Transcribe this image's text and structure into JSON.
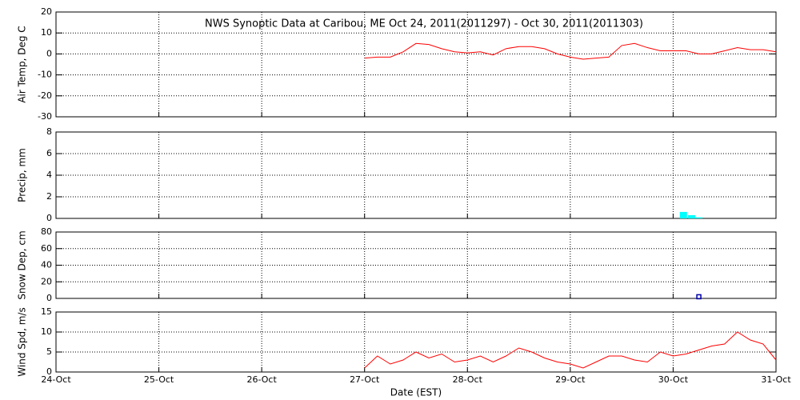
{
  "chart_data": [
    {
      "type": "line",
      "title": "NWS Synoptic Data at Caribou, ME   Oct 24, 2011(2011297) - Oct 30, 2011(2011303)",
      "ylabel": "Air Temp, Deg C",
      "color": "#ff0000",
      "x": [
        3.0,
        3.125,
        3.25,
        3.375,
        3.5,
        3.625,
        3.75,
        3.875,
        4.0,
        4.125,
        4.25,
        4.375,
        4.5,
        4.625,
        4.75,
        4.875,
        5.0,
        5.125,
        5.25,
        5.375,
        5.5,
        5.625,
        5.75,
        5.875,
        6.0,
        6.125,
        6.25,
        6.375,
        6.5,
        6.625,
        6.75,
        6.875,
        7.0
      ],
      "values": [
        -2,
        -1.5,
        -1.5,
        1,
        5,
        4.5,
        2.5,
        1,
        0.5,
        1,
        -0.5,
        2.5,
        3.5,
        3.5,
        2.5,
        0,
        -1.5,
        -2.5,
        -2,
        -1.5,
        4,
        5,
        3,
        1.5,
        1.5,
        1.5,
        0,
        0,
        1.5,
        3,
        2,
        2,
        1
      ],
      "xlim": [
        0,
        7
      ],
      "xticks": [
        0,
        1,
        2,
        3,
        4,
        5,
        6,
        7
      ],
      "ylim": [
        -30,
        20
      ],
      "yticks": [
        -30,
        -20,
        -10,
        0,
        10,
        20
      ],
      "grid": true
    },
    {
      "type": "bar",
      "ylabel": "Precip, mm",
      "color": "#00ffff",
      "x": [
        6.1,
        6.18,
        6.25
      ],
      "values": [
        0.6,
        0.3,
        0.1
      ],
      "xlim": [
        0,
        7
      ],
      "xticks": [
        0,
        1,
        2,
        3,
        4,
        5,
        6,
        7
      ],
      "ylim": [
        0,
        8
      ],
      "yticks": [
        0,
        2,
        4,
        6,
        8
      ],
      "grid": true
    },
    {
      "type": "scatter",
      "ylabel": "Snow Dep, cm",
      "color": "#0000aa",
      "x": [
        6.25
      ],
      "values": [
        2
      ],
      "xlim": [
        0,
        7
      ],
      "xticks": [
        0,
        1,
        2,
        3,
        4,
        5,
        6,
        7
      ],
      "ylim": [
        0,
        80
      ],
      "yticks": [
        0,
        20,
        40,
        60,
        80
      ],
      "grid": true
    },
    {
      "type": "line",
      "ylabel": "Wind Spd, m/s",
      "xlabel": "Date (EST)",
      "color": "#ff0000",
      "x": [
        3.0,
        3.125,
        3.25,
        3.375,
        3.5,
        3.625,
        3.75,
        3.875,
        4.0,
        4.125,
        4.25,
        4.375,
        4.5,
        4.625,
        4.75,
        4.875,
        5.0,
        5.125,
        5.25,
        5.375,
        5.5,
        5.625,
        5.75,
        5.875,
        6.0,
        6.125,
        6.25,
        6.375,
        6.5,
        6.625,
        6.75,
        6.875,
        7.0
      ],
      "values": [
        1,
        4,
        2,
        3,
        5,
        3.5,
        4.5,
        2.5,
        3,
        4,
        2.5,
        4,
        6,
        5,
        3.5,
        2.5,
        2,
        1,
        2.5,
        4,
        4,
        3,
        2.5,
        5,
        4,
        4.5,
        5.5,
        6.5,
        7,
        10,
        8,
        7,
        3
      ],
      "xlim": [
        0,
        7
      ],
      "xticks": [
        {
          "value": 0,
          "label": "24-Oct"
        },
        {
          "value": 1,
          "label": "25-Oct"
        },
        {
          "value": 2,
          "label": "26-Oct"
        },
        {
          "value": 3,
          "label": "27-Oct"
        },
        {
          "value": 4,
          "label": "28-Oct"
        },
        {
          "value": 5,
          "label": "29-Oct"
        },
        {
          "value": 6,
          "label": "30-Oct"
        },
        {
          "value": 7,
          "label": "31-Oct"
        }
      ],
      "ylim": [
        0,
        15
      ],
      "yticks": [
        0,
        5,
        10,
        15
      ],
      "grid": true
    }
  ]
}
